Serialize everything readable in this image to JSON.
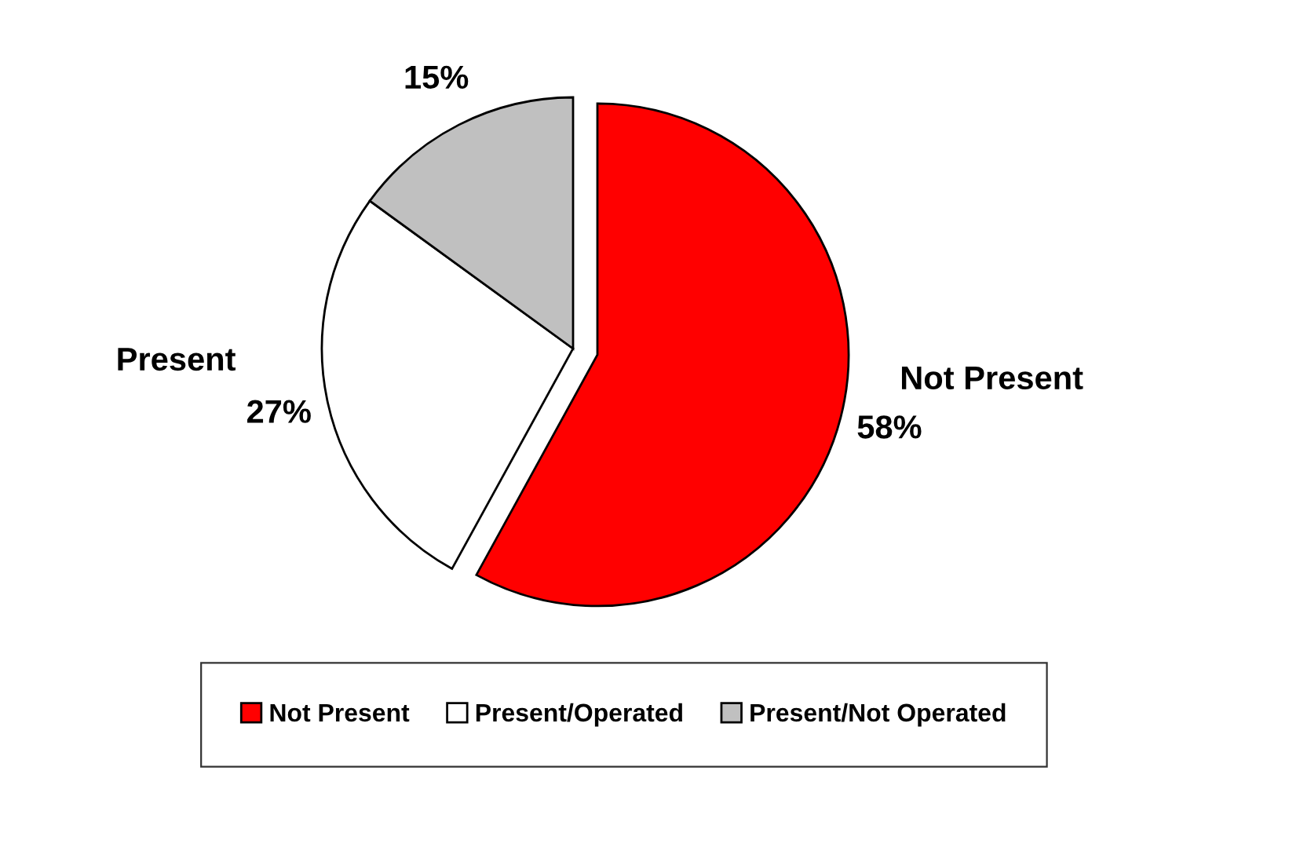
{
  "chart_data": {
    "type": "pie",
    "categories": [
      "Not Present",
      "Present/Operated",
      "Present/Not Operated"
    ],
    "values": [
      58,
      27,
      15
    ],
    "colors": [
      "#ff0000",
      "#ffffff",
      "#c0c0c0"
    ],
    "value_labels": [
      "58%",
      "27%",
      "15%"
    ],
    "annotations": [
      "Not Present",
      "Present"
    ],
    "legend": "bottom"
  }
}
